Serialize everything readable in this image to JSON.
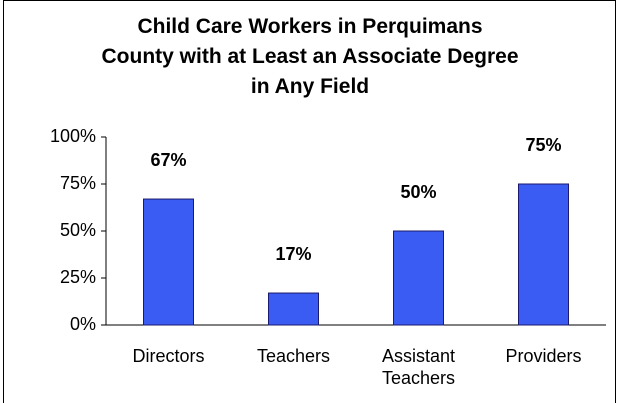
{
  "chart_data": {
    "type": "bar",
    "title": "Child Care Workers in Perquimans County with at Least an Associate Degree in Any Field",
    "categories": [
      "Directors",
      "Teachers",
      "Assistant Teachers",
      "Providers"
    ],
    "values": [
      67,
      17,
      50,
      75
    ],
    "value_labels": [
      "67%",
      "17%",
      "50%",
      "75%"
    ],
    "color": "#3a5cf2",
    "ylim": [
      0,
      100
    ],
    "yticks": [
      {
        "value": 0,
        "label": "0%"
      },
      {
        "value": 25,
        "label": "25%"
      },
      {
        "value": 50,
        "label": "50%"
      },
      {
        "value": 75,
        "label": "75%"
      },
      {
        "value": 100,
        "label": "100%"
      }
    ],
    "grid": false
  }
}
